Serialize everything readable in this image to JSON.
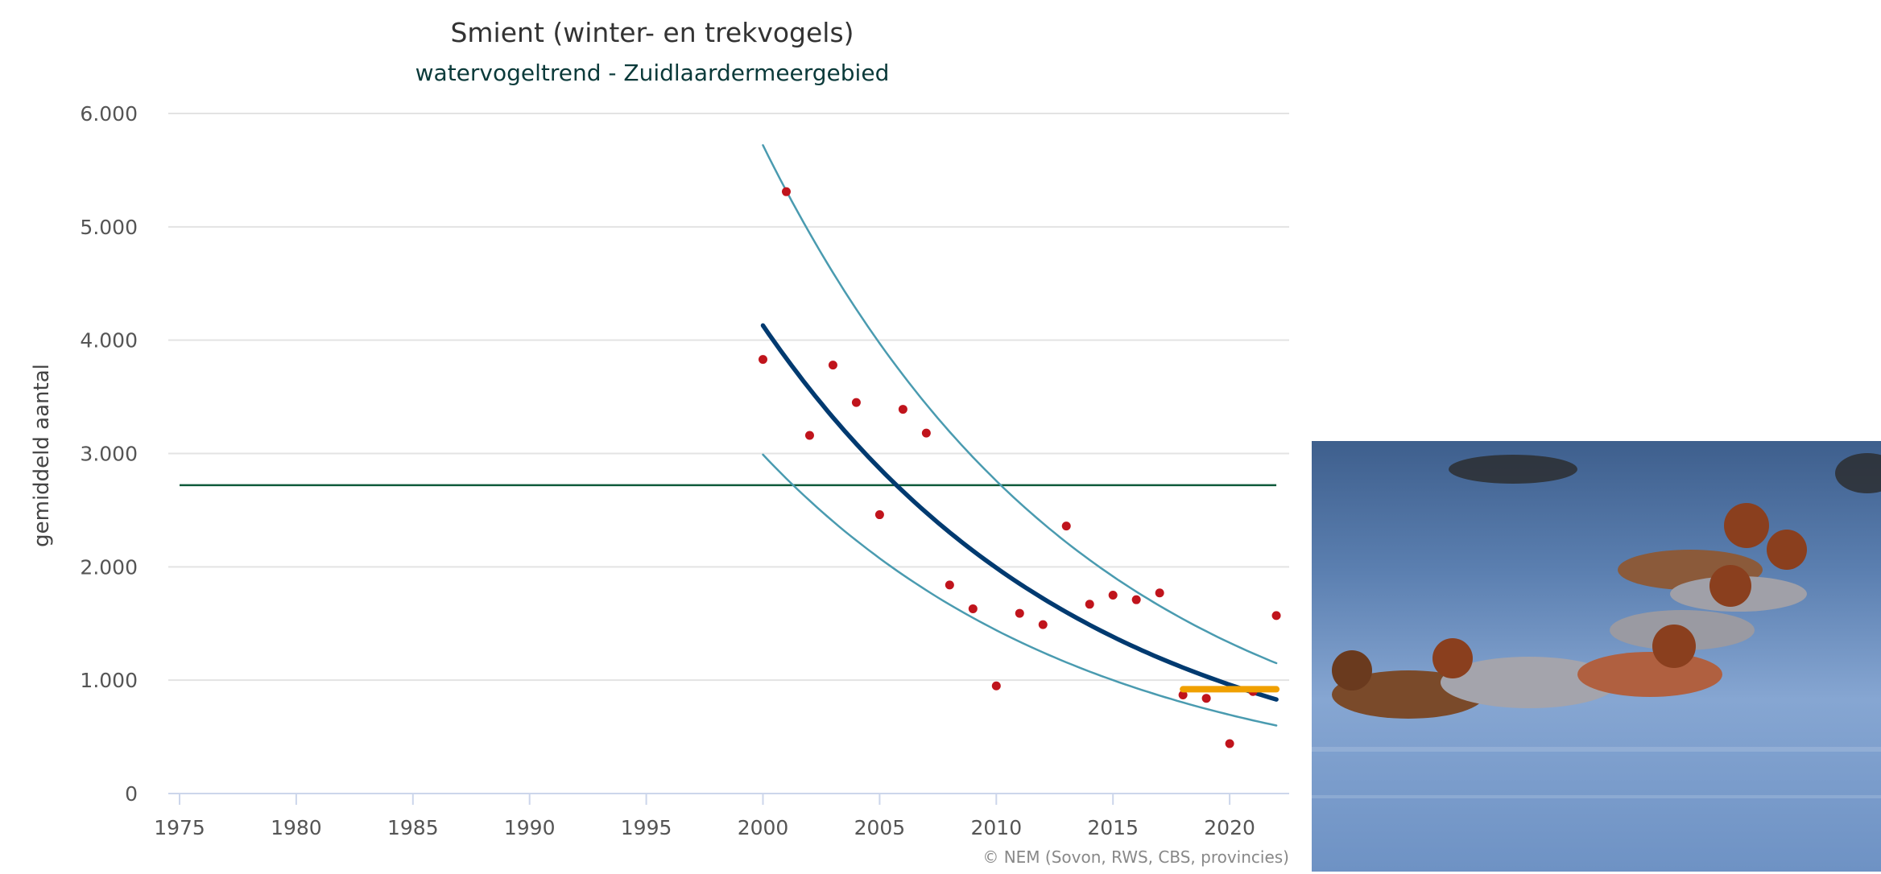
{
  "chart_data": {
    "type": "scatter",
    "title": "Smient (winter- en trekvogels)",
    "subtitle": "watervogeltrend - Zuidlaardermeergebied",
    "ylabel": "gemiddeld aantal",
    "xlim": [
      1975,
      2022
    ],
    "ylim": [
      0,
      6000
    ],
    "xticks": [
      "1975",
      "1980",
      "1985",
      "1990",
      "1995",
      "2000",
      "2005",
      "2010",
      "2015",
      "2020"
    ],
    "yticks": [
      "0",
      "1.000",
      "2.000",
      "3.000",
      "4.000",
      "5.000",
      "6.000"
    ],
    "grid": true,
    "credit": "© NEM (Sovon, RWS, CBS, provincies)",
    "points": {
      "color": "#c0141c",
      "x": [
        2000,
        2001,
        2002,
        2003,
        2004,
        2005,
        2006,
        2007,
        2008,
        2009,
        2010,
        2011,
        2012,
        2013,
        2014,
        2015,
        2016,
        2017,
        2018,
        2019,
        2020,
        2021,
        2022
      ],
      "y": [
        3830,
        5310,
        3160,
        3780,
        3450,
        2460,
        3390,
        3180,
        1840,
        1630,
        950,
        1590,
        1490,
        2360,
        1670,
        1750,
        1710,
        1770,
        870,
        840,
        440,
        900,
        1570
      ]
    },
    "trend": {
      "color": "#003a70",
      "x": [
        2000,
        2005,
        2010,
        2015,
        2022
      ],
      "y": [
        4130,
        2870,
        1990,
        1380,
        830
      ]
    },
    "upper_band": {
      "color": "#4a9bb0",
      "x": [
        2000,
        2005,
        2010,
        2015,
        2022
      ],
      "y": [
        5720,
        3970,
        2760,
        1920,
        1150
      ]
    },
    "lower_band": {
      "color": "#4a9bb0",
      "x": [
        2000,
        2005,
        2010,
        2015,
        2022
      ],
      "y": [
        2990,
        2080,
        1440,
        1000,
        600
      ]
    },
    "reference_line": {
      "color": "#0e5a3a",
      "x": [
        1975,
        2022
      ],
      "y": 2720
    },
    "recent_mean": {
      "color": "#f0a000",
      "x": [
        2018,
        2022
      ],
      "y": 920
    }
  },
  "photo": {
    "subject": "wigeon ducks on water"
  }
}
